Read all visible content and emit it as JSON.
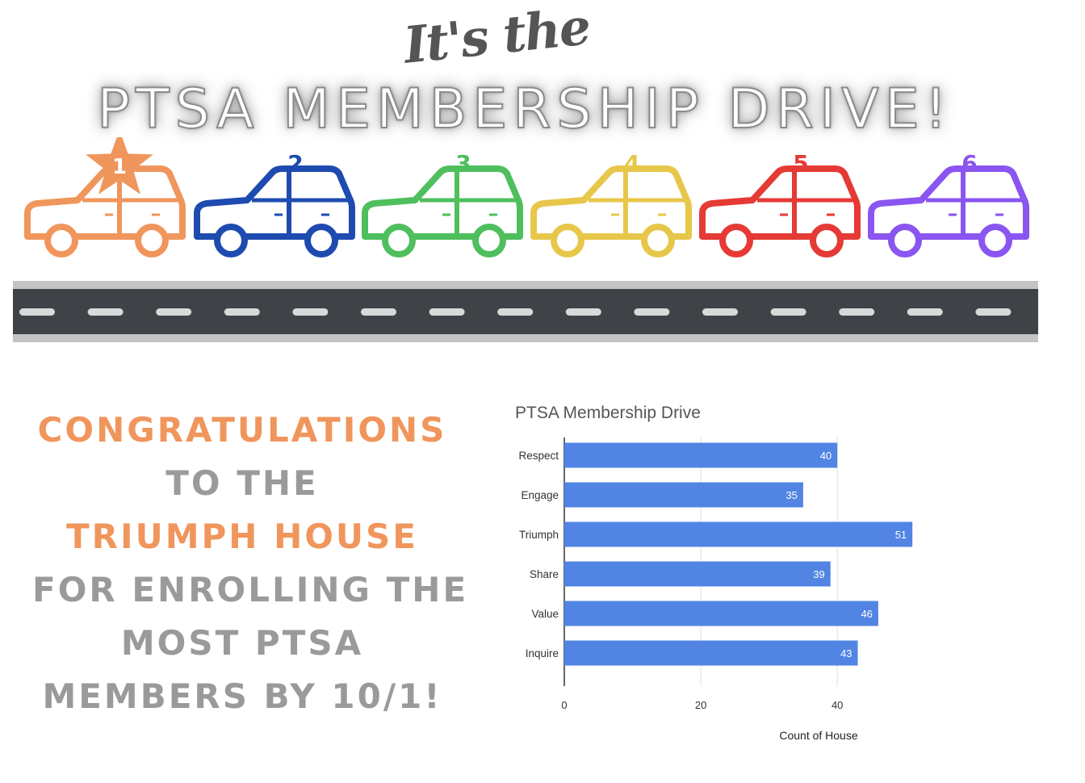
{
  "header": {
    "script": "It's the",
    "title": "PTSA MEMBERSHIP DRIVE!"
  },
  "cars": [
    {
      "rank": "1",
      "color": "#f0965c",
      "winner": true
    },
    {
      "rank": "2",
      "color": "#1e4bb0",
      "winner": false
    },
    {
      "rank": "3",
      "color": "#4fbf5d",
      "winner": false
    },
    {
      "rank": "4",
      "color": "#e7c74a",
      "winner": false
    },
    {
      "rank": "5",
      "color": "#e53a35",
      "winner": false
    },
    {
      "rank": "6",
      "color": "#8a55f0",
      "winner": false
    }
  ],
  "congrats": {
    "line1": "CONGRATULATIONS",
    "line2": "TO THE",
    "line3": "TRIUMPH HOUSE",
    "line4": "FOR ENROLLING THE",
    "line5": "MOST PTSA",
    "line6": "MEMBERS BY 10/1!"
  },
  "chart_data": {
    "type": "bar",
    "orientation": "horizontal",
    "title": "PTSA Membership Drive",
    "categories": [
      "Respect",
      "Engage",
      "Triumph",
      "Share",
      "Value",
      "Inquire"
    ],
    "values": [
      40,
      35,
      51,
      39,
      46,
      43
    ],
    "xlabel": "Count of House",
    "ylabel": "",
    "xlim": [
      0,
      55
    ],
    "xticks": [
      0,
      20,
      40
    ],
    "grid": true,
    "bar_color": "#5184e3"
  }
}
